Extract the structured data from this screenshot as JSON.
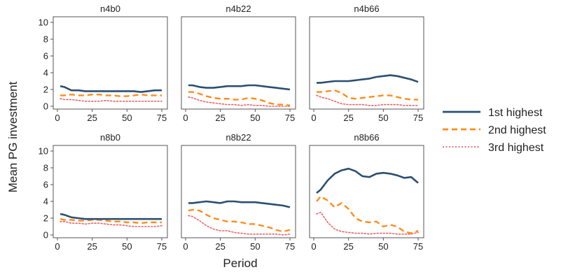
{
  "figure": {
    "ylabel": "Mean PG investment",
    "xlabel": "Period"
  },
  "legend": {
    "position": "right",
    "entries": [
      {
        "label": "1st highest",
        "color": "#2b4f72",
        "style": "solid"
      },
      {
        "label": "2nd highest",
        "color": "#ff8c1a",
        "style": "dashed"
      },
      {
        "label": "3rd highest",
        "color": "#e8656a",
        "style": "dotted"
      }
    ]
  },
  "chart_data": [
    {
      "type": "line",
      "title": "n4b0",
      "x": [
        2,
        5,
        10,
        15,
        20,
        25,
        30,
        35,
        40,
        45,
        50,
        55,
        60,
        65,
        70,
        75
      ],
      "xlim": [
        0,
        75
      ],
      "ylim": [
        0,
        10
      ],
      "xticks": [
        "0",
        "25",
        "50",
        "75"
      ],
      "yticks": [
        "0",
        "2",
        "4",
        "6",
        "8",
        "10"
      ],
      "series": [
        {
          "name": "1st highest",
          "values": [
            2.4,
            2.3,
            1.9,
            1.9,
            1.8,
            1.8,
            1.8,
            1.8,
            1.8,
            1.8,
            1.8,
            1.8,
            1.7,
            1.8,
            1.9,
            1.9
          ]
        },
        {
          "name": "2nd highest",
          "values": [
            1.3,
            1.3,
            1.4,
            1.3,
            1.3,
            1.4,
            1.4,
            1.3,
            1.3,
            1.2,
            1.2,
            1.3,
            1.4,
            1.3,
            1.3,
            1.3
          ]
        },
        {
          "name": "3rd highest",
          "values": [
            0.9,
            0.8,
            0.8,
            0.7,
            0.6,
            0.6,
            0.6,
            0.7,
            0.6,
            0.6,
            0.6,
            0.6,
            0.6,
            0.6,
            0.6,
            0.6
          ]
        }
      ]
    },
    {
      "type": "line",
      "title": "n4b22",
      "x": [
        2,
        5,
        10,
        15,
        20,
        25,
        30,
        35,
        40,
        45,
        50,
        55,
        60,
        65,
        70,
        75
      ],
      "xlim": [
        0,
        75
      ],
      "ylim": [
        0,
        10
      ],
      "xticks": [
        "0",
        "25",
        "50",
        "75"
      ],
      "yticks": [
        "0",
        "2",
        "4",
        "6",
        "8",
        "10"
      ],
      "series": [
        {
          "name": "1st highest",
          "values": [
            2.5,
            2.5,
            2.3,
            2.2,
            2.2,
            2.3,
            2.4,
            2.4,
            2.4,
            2.5,
            2.5,
            2.4,
            2.3,
            2.2,
            2.1,
            2.0
          ]
        },
        {
          "name": "2nd highest",
          "values": [
            1.7,
            1.7,
            1.5,
            1.2,
            1.0,
            0.9,
            0.9,
            0.8,
            0.8,
            1.0,
            0.9,
            0.7,
            0.4,
            0.2,
            0.2,
            0.1
          ]
        },
        {
          "name": "3rd highest",
          "values": [
            1.1,
            1.0,
            0.7,
            0.5,
            0.4,
            0.3,
            0.2,
            0.2,
            0.1,
            0.2,
            0.1,
            0.1,
            0.0,
            0.0,
            0.0,
            0.0
          ]
        }
      ]
    },
    {
      "type": "line",
      "title": "n4b66",
      "x": [
        2,
        5,
        10,
        15,
        20,
        25,
        30,
        35,
        40,
        45,
        50,
        55,
        60,
        65,
        70,
        75
      ],
      "xlim": [
        0,
        75
      ],
      "ylim": [
        0,
        10
      ],
      "xticks": [
        "0",
        "25",
        "50",
        "75"
      ],
      "yticks": [
        "0",
        "2",
        "4",
        "6",
        "8",
        "10"
      ],
      "series": [
        {
          "name": "1st highest",
          "values": [
            2.8,
            2.8,
            2.9,
            3.0,
            3.0,
            3.0,
            3.1,
            3.2,
            3.3,
            3.5,
            3.6,
            3.7,
            3.6,
            3.4,
            3.2,
            2.9
          ]
        },
        {
          "name": "2nd highest",
          "values": [
            1.7,
            1.7,
            1.8,
            1.9,
            1.6,
            1.0,
            0.9,
            1.0,
            1.1,
            1.2,
            1.3,
            1.3,
            1.1,
            0.9,
            0.8,
            0.8
          ]
        },
        {
          "name": "3rd highest",
          "values": [
            1.3,
            1.1,
            0.9,
            0.6,
            0.3,
            0.2,
            0.2,
            0.2,
            0.1,
            0.1,
            0.2,
            0.2,
            0.2,
            0.1,
            0.1,
            0.1
          ]
        }
      ]
    },
    {
      "type": "line",
      "title": "n8b0",
      "x": [
        2,
        5,
        10,
        15,
        20,
        25,
        30,
        35,
        40,
        45,
        50,
        55,
        60,
        65,
        70,
        75
      ],
      "xlim": [
        0,
        75
      ],
      "ylim": [
        0,
        10
      ],
      "xticks": [
        "0",
        "25",
        "50",
        "75"
      ],
      "yticks": [
        "0",
        "2",
        "4",
        "6",
        "8",
        "10"
      ],
      "series": [
        {
          "name": "1st highest",
          "values": [
            2.5,
            2.4,
            2.1,
            2.0,
            1.9,
            1.9,
            1.9,
            1.9,
            1.9,
            1.9,
            1.9,
            1.9,
            1.9,
            1.9,
            1.9,
            1.9
          ]
        },
        {
          "name": "2nd highest",
          "values": [
            1.9,
            1.8,
            1.8,
            1.7,
            1.7,
            1.8,
            1.8,
            1.7,
            1.6,
            1.6,
            1.5,
            1.5,
            1.4,
            1.5,
            1.5,
            1.5
          ]
        },
        {
          "name": "3rd highest",
          "values": [
            1.6,
            1.6,
            1.4,
            1.4,
            1.3,
            1.4,
            1.4,
            1.3,
            1.2,
            1.2,
            1.1,
            1.0,
            1.0,
            1.0,
            1.0,
            1.1
          ]
        }
      ]
    },
    {
      "type": "line",
      "title": "n8b22",
      "x": [
        2,
        5,
        10,
        15,
        20,
        25,
        30,
        35,
        40,
        45,
        50,
        55,
        60,
        65,
        70,
        75
      ],
      "xlim": [
        0,
        75
      ],
      "ylim": [
        0,
        10
      ],
      "xticks": [
        "0",
        "25",
        "50",
        "75"
      ],
      "yticks": [
        "0",
        "2",
        "4",
        "6",
        "8",
        "10"
      ],
      "series": [
        {
          "name": "1st highest",
          "values": [
            3.8,
            3.8,
            3.9,
            4.0,
            3.9,
            3.8,
            4.0,
            4.0,
            3.9,
            3.9,
            3.9,
            3.8,
            3.7,
            3.6,
            3.5,
            3.3
          ]
        },
        {
          "name": "2nd highest",
          "values": [
            2.9,
            3.0,
            2.9,
            2.4,
            2.0,
            1.8,
            1.6,
            1.6,
            1.5,
            1.3,
            1.3,
            1.1,
            0.9,
            0.6,
            0.4,
            0.6
          ]
        },
        {
          "name": "3rd highest",
          "values": [
            2.3,
            2.2,
            1.7,
            1.1,
            0.7,
            0.5,
            0.5,
            0.3,
            0.2,
            0.1,
            0.1,
            0.1,
            0.1,
            0.1,
            0.0,
            0.1
          ]
        }
      ]
    },
    {
      "type": "line",
      "title": "n8b66",
      "x": [
        2,
        5,
        10,
        15,
        20,
        25,
        30,
        35,
        40,
        45,
        50,
        55,
        60,
        65,
        70,
        75
      ],
      "xlim": [
        0,
        75
      ],
      "ylim": [
        0,
        10
      ],
      "xticks": [
        "0",
        "25",
        "50",
        "75"
      ],
      "yticks": [
        "0",
        "2",
        "4",
        "6",
        "8",
        "10"
      ],
      "series": [
        {
          "name": "1st highest",
          "values": [
            5.0,
            5.4,
            6.5,
            7.3,
            7.7,
            7.9,
            7.6,
            7.0,
            6.9,
            7.3,
            7.4,
            7.3,
            7.1,
            6.8,
            6.9,
            6.2
          ]
        },
        {
          "name": "2nd highest",
          "values": [
            4.0,
            4.6,
            4.1,
            3.3,
            3.8,
            3.1,
            2.0,
            1.6,
            1.5,
            1.6,
            1.0,
            1.2,
            1.0,
            0.4,
            0.2,
            0.5
          ]
        },
        {
          "name": "3rd highest",
          "values": [
            2.5,
            2.7,
            1.5,
            0.7,
            0.4,
            0.3,
            0.2,
            0.2,
            0.1,
            0.2,
            0.2,
            0.2,
            0.1,
            0.1,
            0.1,
            0.3
          ]
        }
      ]
    }
  ]
}
